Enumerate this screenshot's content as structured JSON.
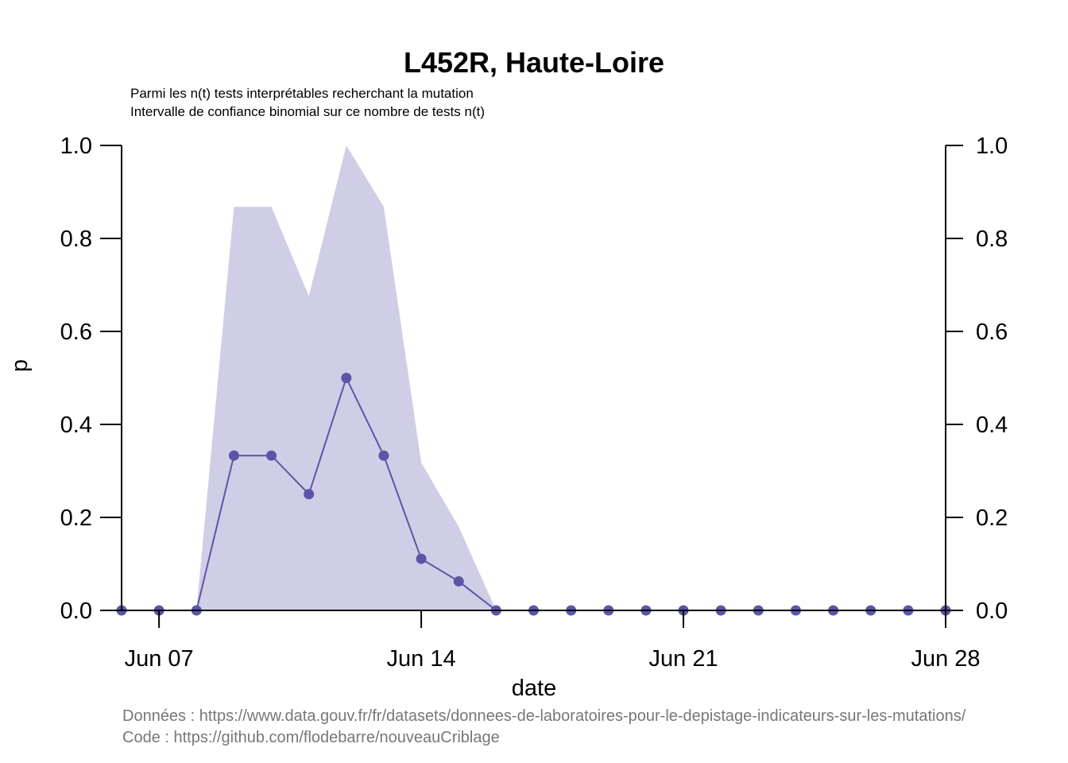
{
  "chart_data": {
    "type": "line",
    "title": "L452R, Haute-Loire",
    "subtitle_lines": [
      "Parmi les n(t) tests interprétables recherchant la mutation",
      "Intervalle de confiance binomial sur ce nombre de tests n(t)"
    ],
    "xlabel": "date",
    "ylabel": "p",
    "x_tick_labels": [
      "Jun 07",
      "Jun 14",
      "Jun 21",
      "Jun 28"
    ],
    "x_tick_dates": [
      "2021-06-07",
      "2021-06-14",
      "2021-06-21",
      "2021-06-28"
    ],
    "y_ticks": [
      0.0,
      0.2,
      0.4,
      0.6,
      0.8,
      1.0
    ],
    "y_tick_labels": [
      "0.0",
      "0.2",
      "0.4",
      "0.6",
      "0.8",
      "1.0"
    ],
    "ylim": [
      0,
      1
    ],
    "xlim": [
      "2021-06-06",
      "2021-06-28"
    ],
    "grid": false,
    "right_axis": true,
    "series": [
      {
        "x": [
          "2021-06-06",
          "2021-06-07",
          "2021-06-08",
          "2021-06-09",
          "2021-06-10",
          "2021-06-11",
          "2021-06-12",
          "2021-06-13",
          "2021-06-14",
          "2021-06-15",
          "2021-06-16",
          "2021-06-17",
          "2021-06-18",
          "2021-06-19",
          "2021-06-20",
          "2021-06-21",
          "2021-06-22",
          "2021-06-23",
          "2021-06-24",
          "2021-06-25",
          "2021-06-26",
          "2021-06-27",
          "2021-06-28"
        ],
        "values": [
          0,
          0,
          0,
          0.333,
          0.333,
          0.25,
          0.5,
          0.333,
          0.111,
          0.0625,
          0,
          0,
          0,
          0,
          0,
          0,
          0,
          0,
          0,
          0,
          0,
          0,
          0
        ],
        "ci_lower": [
          0,
          0,
          0,
          0,
          0,
          0,
          0,
          0,
          0,
          0,
          0,
          0,
          0,
          0,
          0,
          0,
          0,
          0,
          0,
          0,
          0,
          0,
          0
        ],
        "ci_upper": [
          0,
          0,
          0,
          0.868,
          0.868,
          0.676,
          1.0,
          0.868,
          0.318,
          0.18,
          0,
          0,
          0,
          0,
          0,
          0,
          0,
          0,
          0,
          0,
          0,
          0,
          0
        ]
      }
    ],
    "colors": {
      "line": "#5b55a5",
      "band": "#d0cee6"
    }
  },
  "source": {
    "data_line": "Données : https://www.data.gouv.fr/fr/datasets/donnees-de-laboratoires-pour-le-depistage-indicateurs-sur-les-mutations/",
    "code_line": "Code : https://github.com/flodebarre/nouveauCriblage"
  }
}
